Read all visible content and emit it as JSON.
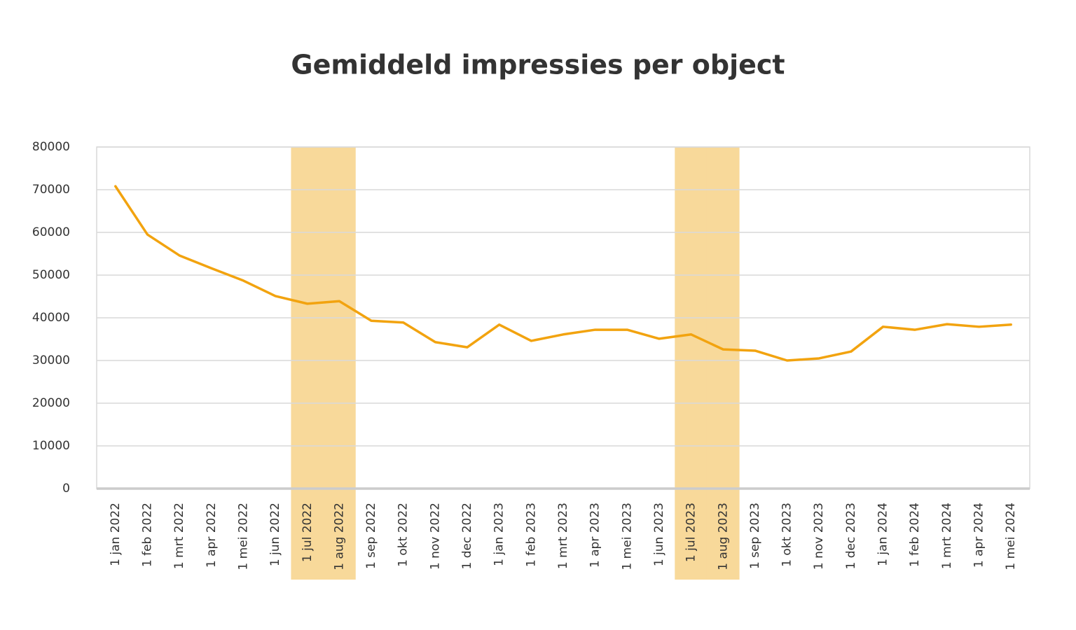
{
  "chart_data": {
    "type": "line",
    "title": "Gemiddeld impressies per object",
    "categories": [
      "1 jan 2022",
      "1 feb 2022",
      "1 mrt 2022",
      "1 apr 2022",
      "1 mei 2022",
      "1 jun 2022",
      "1 jul 2022",
      "1 aug 2022",
      "1 sep 2022",
      "1 okt 2022",
      "1 nov 2022",
      "1 dec 2022",
      "1 jan 2023",
      "1 feb 2023",
      "1 mrt 2023",
      "1 apr 2023",
      "1 mei 2023",
      "1 jun 2023",
      "1 jul 2023",
      "1 aug 2023",
      "1 sep 2023",
      "1 okt 2023",
      "1 nov 2023",
      "1 dec 2023",
      "1 jan 2024",
      "1 feb 2024",
      "1 mrt 2024",
      "1 apr 2024",
      "1 mei 2024"
    ],
    "values": [
      70800,
      59500,
      54600,
      51600,
      48700,
      45100,
      43300,
      43900,
      39300,
      38900,
      34300,
      33100,
      38400,
      34600,
      36100,
      37200,
      37200,
      35100,
      36100,
      32600,
      32300,
      30000,
      30500,
      32100,
      37900,
      37200,
      38500,
      37900,
      38400
    ],
    "color": "#f2a30f",
    "highlight_categories": [
      "1 jul 2022",
      "1 aug 2022",
      "1 jul 2023",
      "1 aug 2023"
    ],
    "highlight_color": "#f8d99a",
    "ylim": [
      0,
      80000
    ],
    "yticks": [
      0,
      10000,
      20000,
      30000,
      40000,
      50000,
      60000,
      70000,
      80000
    ],
    "grid": true
  }
}
